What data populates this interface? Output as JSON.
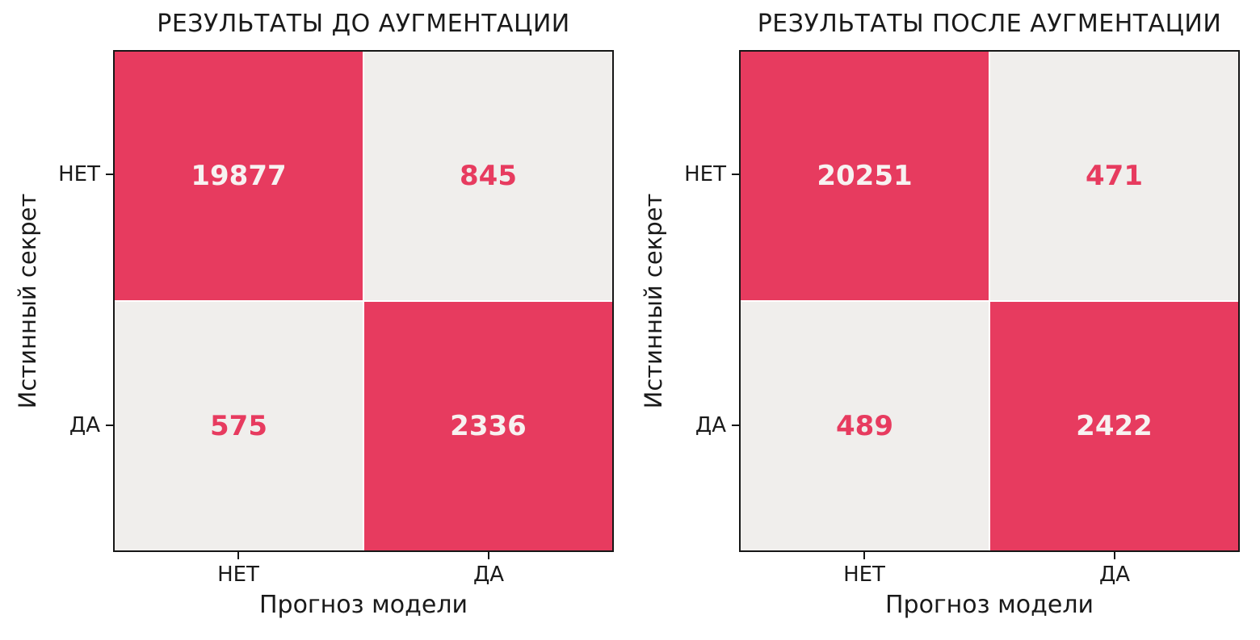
{
  "colors": {
    "high": "#e73b5f",
    "low": "#f0eeec",
    "text_on_high": "#f7f2f1",
    "text_on_low": "#e73b5f",
    "axis": "#161616"
  },
  "chart_data": [
    {
      "type": "heatmap",
      "title": "РЕЗУЛЬТАТЫ ДО АУГМЕНТАЦИИ",
      "xlabel": "Прогноз модели",
      "ylabel": "Истинный секрет",
      "x_ticklabels": [
        "НЕТ",
        "ДА"
      ],
      "y_ticklabels": [
        "НЕТ",
        "ДА"
      ],
      "rows": [
        [
          19877,
          845
        ],
        [
          575,
          2336
        ]
      ],
      "cell_levels": [
        [
          "high",
          "low"
        ],
        [
          "low",
          "high"
        ]
      ],
      "legend": "none",
      "grid": false
    },
    {
      "type": "heatmap",
      "title": "РЕЗУЛЬТАТЫ ПОСЛЕ АУГМЕНТАЦИИ",
      "xlabel": "Прогноз модели",
      "ylabel": "Истинный секрет",
      "x_ticklabels": [
        "НЕТ",
        "ДА"
      ],
      "y_ticklabels": [
        "НЕТ",
        "ДА"
      ],
      "rows": [
        [
          20251,
          471
        ],
        [
          489,
          2422
        ]
      ],
      "cell_levels": [
        [
          "high",
          "low"
        ],
        [
          "low",
          "high"
        ]
      ],
      "legend": "none",
      "grid": false
    }
  ]
}
